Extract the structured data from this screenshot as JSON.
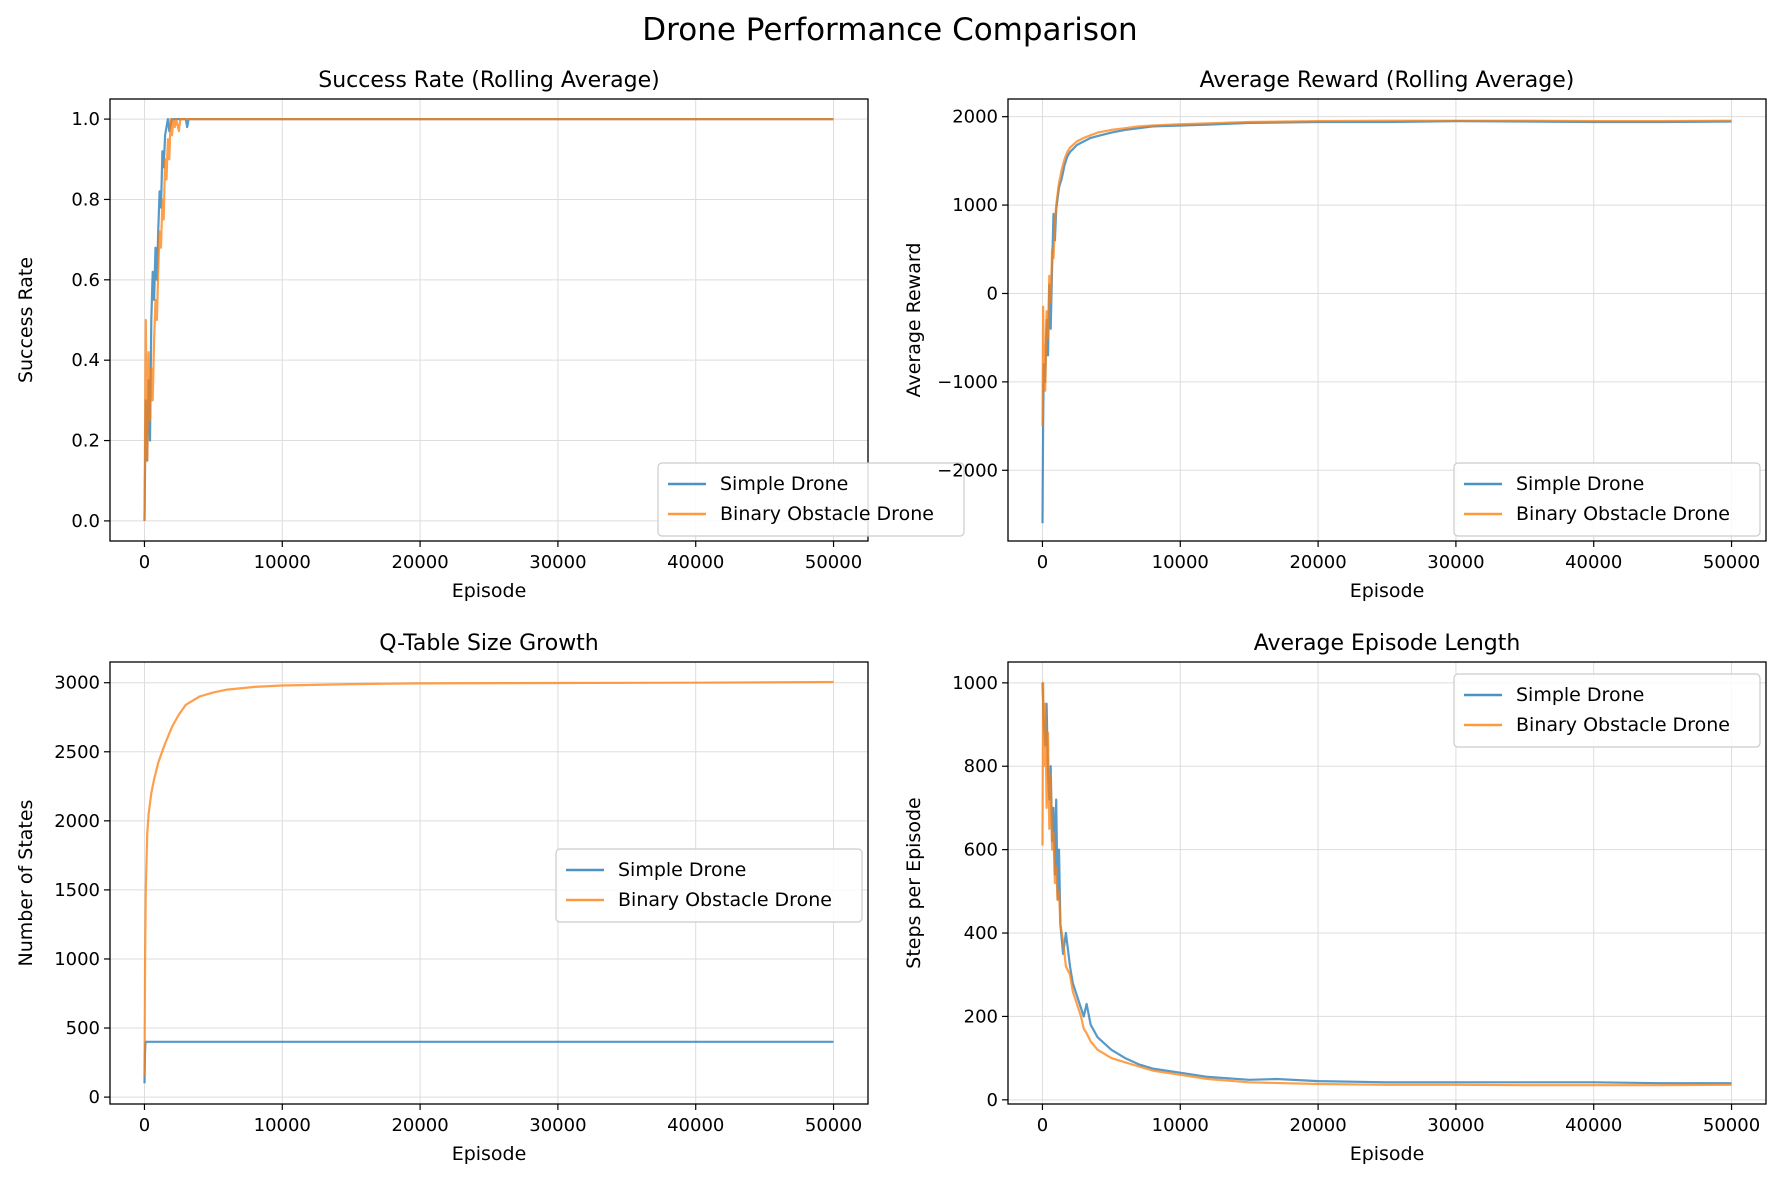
{
  "suptitle": "Drone Performance Comparison",
  "colors": {
    "simple": "#1f77b4",
    "binary": "#ff7f0e",
    "grid": "#dddddd"
  },
  "chart_data": [
    {
      "type": "line",
      "title": "Success Rate (Rolling Average)",
      "xlabel": "Episode",
      "ylabel": "Success Rate",
      "xlim": [
        -2500,
        52500
      ],
      "ylim": [
        -0.05,
        1.05
      ],
      "xticks": [
        0,
        10000,
        20000,
        30000,
        40000,
        50000
      ],
      "yticks": [
        0.0,
        0.2,
        0.4,
        0.6,
        0.8,
        1.0
      ],
      "ytick_labels": [
        "0.0",
        "0.2",
        "0.4",
        "0.6",
        "0.8",
        "1.0"
      ],
      "grid": true,
      "legend": "lower right",
      "series": [
        {
          "name": "Simple Drone",
          "color": "#1f77b4",
          "x": [
            0,
            100,
            200,
            300,
            400,
            500,
            600,
            700,
            800,
            900,
            1000,
            1100,
            1200,
            1300,
            1400,
            1500,
            1600,
            1700,
            1800,
            2000,
            2200,
            2500,
            3000,
            3100,
            3200,
            5000,
            50000
          ],
          "y": [
            0.0,
            0.3,
            0.15,
            0.35,
            0.2,
            0.5,
            0.62,
            0.55,
            0.68,
            0.6,
            0.72,
            0.82,
            0.78,
            0.92,
            0.88,
            0.96,
            0.98,
            1.0,
            0.97,
            1.0,
            1.0,
            1.0,
            1.0,
            0.98,
            1.0,
            1.0,
            1.0
          ]
        },
        {
          "name": "Binary Obstacle Drone",
          "color": "#ff7f0e",
          "x": [
            0,
            100,
            200,
            300,
            400,
            500,
            600,
            700,
            800,
            900,
            1000,
            1100,
            1200,
            1300,
            1400,
            1500,
            1600,
            1700,
            1800,
            1900,
            2000,
            2100,
            2200,
            2300,
            2500,
            2600,
            2800,
            5000,
            50000
          ],
          "y": [
            0.0,
            0.5,
            0.15,
            0.42,
            0.25,
            0.38,
            0.3,
            0.45,
            0.55,
            0.5,
            0.62,
            0.72,
            0.68,
            0.8,
            0.75,
            0.9,
            0.85,
            0.95,
            0.9,
            1.0,
            0.96,
            1.0,
            0.98,
            1.0,
            0.97,
            1.0,
            1.0,
            1.0,
            1.0
          ]
        }
      ]
    },
    {
      "type": "line",
      "title": "Average Reward (Rolling Average)",
      "xlabel": "Episode",
      "ylabel": "Average Reward",
      "xlim": [
        -2500,
        52500
      ],
      "ylim": [
        -2800,
        2200
      ],
      "xticks": [
        0,
        10000,
        20000,
        30000,
        40000,
        50000
      ],
      "yticks": [
        -2000,
        -1000,
        0,
        1000,
        2000
      ],
      "ytick_labels": [
        "−2000",
        "−1000",
        "0",
        "1000",
        "2000"
      ],
      "grid": true,
      "legend": "lower right",
      "series": [
        {
          "name": "Simple Drone",
          "color": "#1f77b4",
          "x": [
            0,
            50,
            100,
            200,
            300,
            400,
            500,
            600,
            700,
            800,
            900,
            1000,
            1200,
            1400,
            1600,
            1800,
            2000,
            2500,
            3000,
            3500,
            4000,
            5000,
            6000,
            7000,
            8000,
            10000,
            12000,
            15000,
            20000,
            25000,
            30000,
            35000,
            40000,
            45000,
            50000
          ],
          "y": [
            -2600,
            -1500,
            -800,
            -1000,
            -300,
            -700,
            100,
            -400,
            300,
            900,
            600,
            950,
            1200,
            1300,
            1450,
            1550,
            1600,
            1680,
            1720,
            1760,
            1780,
            1820,
            1850,
            1870,
            1890,
            1900,
            1910,
            1930,
            1940,
            1940,
            1950,
            1945,
            1940,
            1940,
            1945
          ]
        },
        {
          "name": "Binary Obstacle Drone",
          "color": "#ff7f0e",
          "x": [
            0,
            50,
            100,
            200,
            300,
            400,
            500,
            600,
            700,
            800,
            900,
            1000,
            1200,
            1400,
            1600,
            1800,
            2000,
            2500,
            3000,
            3500,
            4000,
            5000,
            6000,
            7000,
            8000,
            10000,
            12000,
            15000,
            20000,
            25000,
            30000,
            35000,
            40000,
            45000,
            50000
          ],
          "y": [
            -1500,
            -150,
            -600,
            -1100,
            -200,
            -500,
            200,
            -100,
            500,
            400,
            800,
            1000,
            1250,
            1400,
            1520,
            1600,
            1650,
            1720,
            1760,
            1790,
            1820,
            1850,
            1870,
            1890,
            1900,
            1915,
            1925,
            1940,
            1950,
            1955,
            1955,
            1955,
            1950,
            1950,
            1955
          ]
        }
      ]
    },
    {
      "type": "line",
      "title": "Q-Table Size Growth",
      "xlabel": "Episode",
      "ylabel": "Number of States",
      "xlim": [
        -2500,
        52500
      ],
      "ylim": [
        -50,
        3150
      ],
      "xticks": [
        0,
        10000,
        20000,
        30000,
        40000,
        50000
      ],
      "yticks": [
        0,
        500,
        1000,
        1500,
        2000,
        2500,
        3000
      ],
      "ytick_labels": [
        "0",
        "500",
        "1000",
        "1500",
        "2000",
        "2500",
        "3000"
      ],
      "grid": true,
      "legend": "center right",
      "series": [
        {
          "name": "Simple Drone",
          "color": "#1f77b4",
          "x": [
            0,
            30,
            60,
            100,
            200,
            50000
          ],
          "y": [
            100,
            300,
            380,
            400,
            400,
            400
          ]
        },
        {
          "name": "Binary Obstacle Drone",
          "color": "#ff7f0e",
          "x": [
            0,
            50,
            100,
            200,
            300,
            500,
            700,
            1000,
            1500,
            2000,
            2500,
            3000,
            4000,
            5000,
            6000,
            8000,
            10000,
            15000,
            20000,
            30000,
            40000,
            50000
          ],
          "y": [
            150,
            1000,
            1500,
            1900,
            2050,
            2200,
            2300,
            2420,
            2560,
            2680,
            2770,
            2840,
            2900,
            2930,
            2950,
            2970,
            2980,
            2990,
            2995,
            2998,
            3000,
            3005
          ]
        }
      ]
    },
    {
      "type": "line",
      "title": "Average Episode Length",
      "xlabel": "Episode",
      "ylabel": "Steps per Episode",
      "xlim": [
        -2500,
        52500
      ],
      "ylim": [
        -10,
        1050
      ],
      "xticks": [
        0,
        10000,
        20000,
        30000,
        40000,
        50000
      ],
      "yticks": [
        0,
        200,
        400,
        600,
        800,
        1000
      ],
      "ytick_labels": [
        "0",
        "200",
        "400",
        "600",
        "800",
        "1000"
      ],
      "grid": true,
      "legend": "upper right",
      "series": [
        {
          "name": "Simple Drone",
          "color": "#1f77b4",
          "x": [
            0,
            100,
            200,
            300,
            400,
            500,
            600,
            700,
            800,
            900,
            1000,
            1100,
            1200,
            1300,
            1500,
            1700,
            2000,
            2200,
            2500,
            2800,
            3000,
            3200,
            3500,
            4000,
            5000,
            6000,
            7000,
            8000,
            10000,
            12000,
            15000,
            17000,
            20000,
            25000,
            30000,
            35000,
            40000,
            45000,
            50000
          ],
          "y": [
            1000,
            900,
            850,
            950,
            780,
            720,
            800,
            620,
            700,
            540,
            720,
            480,
            600,
            420,
            350,
            400,
            320,
            280,
            250,
            220,
            200,
            230,
            180,
            150,
            120,
            100,
            85,
            75,
            65,
            55,
            48,
            50,
            45,
            42,
            42,
            42,
            42,
            40,
            40
          ]
        },
        {
          "name": "Binary Obstacle Drone",
          "color": "#ff7f0e",
          "x": [
            0,
            50,
            100,
            200,
            300,
            400,
            500,
            600,
            700,
            800,
            900,
            1000,
            1100,
            1200,
            1300,
            1500,
            1700,
            2000,
            2200,
            2500,
            2800,
            3000,
            3200,
            3500,
            4000,
            5000,
            6000,
            7000,
            8000,
            10000,
            12000,
            15000,
            20000,
            25000,
            30000,
            35000,
            40000,
            45000,
            50000
          ],
          "y": [
            610,
            1000,
            800,
            950,
            700,
            880,
            650,
            780,
            600,
            640,
            520,
            560,
            480,
            500,
            420,
            380,
            320,
            300,
            260,
            230,
            200,
            170,
            160,
            140,
            120,
            100,
            90,
            80,
            70,
            60,
            50,
            42,
            38,
            36,
            36,
            35,
            35,
            35,
            36
          ]
        }
      ]
    }
  ]
}
